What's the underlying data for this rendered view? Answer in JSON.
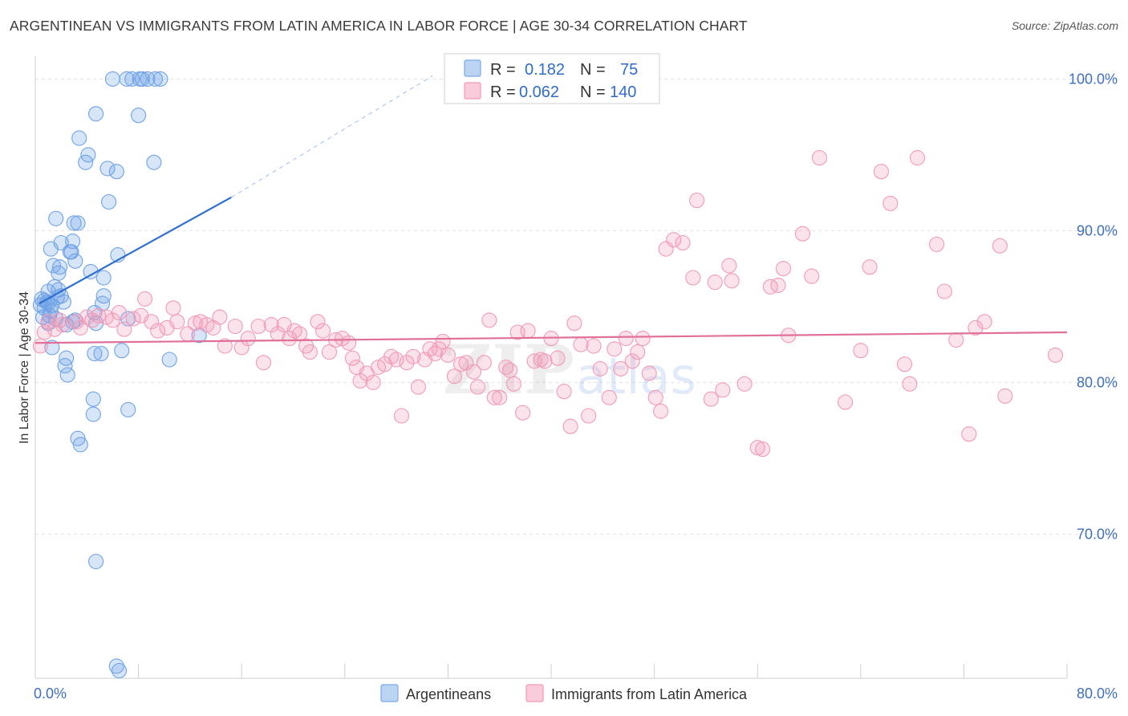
{
  "title": "ARGENTINEAN VS IMMIGRANTS FROM LATIN AMERICA IN LABOR FORCE | AGE 30-34 CORRELATION CHART",
  "source": "Source: ZipAtlas.com",
  "watermark": {
    "zip": "ZIP",
    "atlas": "atlas"
  },
  "chart_data": {
    "type": "scatter",
    "ylabel": "In Labor Force | Age 30-34",
    "xlim": [
      0,
      80
    ],
    "ylim": [
      60.5,
      101.5
    ],
    "x_tick_labels": [
      "0.0%",
      "80.0%"
    ],
    "y_ticks": [
      {
        "value": 100,
        "label": "100.0%"
      },
      {
        "value": 90,
        "label": "90.0%"
      },
      {
        "value": 80,
        "label": "80.0%"
      },
      {
        "value": 70,
        "label": "70.0%"
      }
    ],
    "grid": true,
    "legend_position": "top-center",
    "stats_legend": [
      {
        "r_label": "R =",
        "r": "0.182",
        "n_label": "N =",
        "n": "75",
        "color": "#7aaae8"
      },
      {
        "r_label": "R =",
        "r": "0.062",
        "n_label": "N =",
        "n": "140",
        "color": "#f29ab8"
      }
    ],
    "series": [
      {
        "name": "Argentineans",
        "color": "#6fa3e6",
        "line_color": "#2e6fd0",
        "trend": {
          "x0": 0.3,
          "y0": 85.2,
          "x1": 15.2,
          "y1": 92.2,
          "dash_x1": 30.8,
          "dash_y1": 100.2
        },
        "points": [
          [
            6.0,
            100.0
          ],
          [
            7.1,
            100.0
          ],
          [
            7.5,
            100.0
          ],
          [
            8.1,
            100.0
          ],
          [
            8.3,
            100.0
          ],
          [
            8.7,
            100.0
          ],
          [
            9.3,
            100.0
          ],
          [
            9.7,
            100.0
          ],
          [
            4.7,
            97.7
          ],
          [
            8.0,
            97.6
          ],
          [
            3.4,
            96.1
          ],
          [
            4.1,
            95.0
          ],
          [
            3.9,
            94.5
          ],
          [
            9.2,
            94.5
          ],
          [
            5.6,
            94.1
          ],
          [
            6.3,
            93.9
          ],
          [
            5.7,
            91.9
          ],
          [
            1.6,
            90.8
          ],
          [
            3.0,
            90.5
          ],
          [
            3.3,
            90.5
          ],
          [
            2.0,
            89.2
          ],
          [
            1.2,
            88.8
          ],
          [
            2.9,
            89.3
          ],
          [
            2.7,
            88.6
          ],
          [
            2.8,
            88.6
          ],
          [
            6.4,
            88.4
          ],
          [
            3.1,
            88.0
          ],
          [
            1.4,
            87.7
          ],
          [
            1.9,
            87.6
          ],
          [
            1.8,
            87.2
          ],
          [
            4.3,
            87.3
          ],
          [
            5.3,
            86.9
          ],
          [
            1.5,
            86.3
          ],
          [
            1.8,
            86.1
          ],
          [
            1.0,
            86.0
          ],
          [
            0.5,
            85.5
          ],
          [
            0.7,
            85.4
          ],
          [
            1.0,
            85.2
          ],
          [
            1.3,
            85.1
          ],
          [
            0.4,
            85.1
          ],
          [
            0.7,
            84.9
          ],
          [
            1.2,
            84.7
          ],
          [
            2.2,
            85.3
          ],
          [
            2.0,
            85.7
          ],
          [
            1.7,
            85.6
          ],
          [
            5.3,
            85.7
          ],
          [
            5.2,
            85.2
          ],
          [
            4.6,
            84.6
          ],
          [
            0.6,
            84.3
          ],
          [
            1.0,
            83.9
          ],
          [
            1.6,
            84.2
          ],
          [
            2.4,
            83.8
          ],
          [
            2.9,
            84.0
          ],
          [
            4.7,
            83.9
          ],
          [
            7.2,
            84.2
          ],
          [
            12.7,
            83.1
          ],
          [
            1.3,
            82.3
          ],
          [
            6.7,
            82.1
          ],
          [
            2.4,
            81.6
          ],
          [
            4.6,
            81.9
          ],
          [
            5.1,
            81.9
          ],
          [
            2.3,
            81.1
          ],
          [
            10.4,
            81.5
          ],
          [
            2.5,
            80.5
          ],
          [
            4.5,
            78.9
          ],
          [
            4.5,
            77.9
          ],
          [
            7.2,
            78.2
          ],
          [
            3.3,
            76.3
          ],
          [
            3.5,
            75.9
          ],
          [
            4.7,
            68.2
          ],
          [
            6.3,
            61.3
          ],
          [
            6.5,
            61.0
          ],
          [
            3.1,
            84.1
          ],
          [
            0.9,
            85.3
          ],
          [
            1.1,
            84.4
          ]
        ]
      },
      {
        "name": "Immigrants from Latin America",
        "color": "#f29ab8",
        "line_color": "#e0709a",
        "trend": {
          "x0": 0.0,
          "y0": 82.6,
          "x1": 80.0,
          "y1": 83.3
        },
        "points": [
          [
            0.4,
            82.4
          ],
          [
            0.7,
            83.3
          ],
          [
            1.0,
            84.0
          ],
          [
            1.5,
            83.5
          ],
          [
            1.9,
            84.1
          ],
          [
            2.1,
            83.8
          ],
          [
            3.2,
            84.0
          ],
          [
            3.5,
            83.6
          ],
          [
            4.0,
            84.3
          ],
          [
            4.4,
            84.1
          ],
          [
            4.9,
            84.4
          ],
          [
            5.5,
            84.3
          ],
          [
            6.0,
            84.1
          ],
          [
            6.5,
            84.6
          ],
          [
            6.9,
            83.5
          ],
          [
            7.6,
            84.2
          ],
          [
            8.2,
            84.4
          ],
          [
            8.5,
            85.5
          ],
          [
            9.0,
            84.0
          ],
          [
            9.5,
            83.4
          ],
          [
            10.2,
            83.6
          ],
          [
            10.7,
            84.9
          ],
          [
            11.0,
            84.0
          ],
          [
            11.8,
            83.2
          ],
          [
            12.4,
            83.9
          ],
          [
            12.8,
            84.0
          ],
          [
            13.3,
            83.8
          ],
          [
            13.8,
            83.6
          ],
          [
            14.3,
            84.3
          ],
          [
            14.7,
            82.4
          ],
          [
            15.5,
            83.7
          ],
          [
            16.0,
            82.3
          ],
          [
            16.5,
            82.9
          ],
          [
            17.3,
            83.7
          ],
          [
            17.7,
            81.3
          ],
          [
            18.3,
            83.8
          ],
          [
            18.8,
            83.2
          ],
          [
            19.3,
            83.8
          ],
          [
            19.7,
            82.9
          ],
          [
            20.1,
            83.4
          ],
          [
            20.5,
            83.2
          ],
          [
            21.0,
            82.4
          ],
          [
            21.3,
            82.0
          ],
          [
            21.9,
            84.0
          ],
          [
            22.3,
            83.4
          ],
          [
            22.8,
            82.0
          ],
          [
            23.3,
            82.8
          ],
          [
            23.8,
            82.9
          ],
          [
            24.3,
            82.6
          ],
          [
            24.6,
            81.6
          ],
          [
            24.9,
            81.0
          ],
          [
            25.2,
            80.1
          ],
          [
            25.7,
            80.6
          ],
          [
            26.2,
            80.0
          ],
          [
            26.6,
            81.0
          ],
          [
            27.1,
            81.2
          ],
          [
            27.6,
            81.7
          ],
          [
            28.0,
            81.5
          ],
          [
            28.4,
            77.8
          ],
          [
            28.8,
            81.3
          ],
          [
            29.3,
            81.7
          ],
          [
            29.7,
            79.7
          ],
          [
            30.2,
            81.5
          ],
          [
            30.6,
            82.2
          ],
          [
            31.0,
            81.9
          ],
          [
            31.3,
            82.2
          ],
          [
            31.6,
            82.7
          ],
          [
            32.0,
            81.8
          ],
          [
            32.5,
            80.4
          ],
          [
            33.0,
            81.2
          ],
          [
            33.4,
            81.3
          ],
          [
            34.0,
            80.7
          ],
          [
            34.3,
            79.7
          ],
          [
            34.8,
            81.3
          ],
          [
            35.2,
            84.1
          ],
          [
            35.6,
            79.0
          ],
          [
            36.0,
            79.0
          ],
          [
            36.5,
            81.0
          ],
          [
            36.8,
            80.8
          ],
          [
            37.1,
            79.9
          ],
          [
            37.4,
            83.3
          ],
          [
            37.8,
            78.0
          ],
          [
            38.2,
            83.4
          ],
          [
            38.7,
            81.4
          ],
          [
            39.2,
            81.5
          ],
          [
            39.5,
            81.4
          ],
          [
            40.0,
            82.9
          ],
          [
            40.5,
            81.6
          ],
          [
            41.0,
            79.4
          ],
          [
            41.5,
            77.1
          ],
          [
            41.8,
            83.9
          ],
          [
            42.3,
            82.5
          ],
          [
            42.9,
            77.8
          ],
          [
            43.3,
            82.4
          ],
          [
            43.8,
            80.9
          ],
          [
            44.5,
            79.0
          ],
          [
            44.9,
            82.2
          ],
          [
            45.4,
            80.9
          ],
          [
            45.8,
            82.9
          ],
          [
            46.3,
            81.4
          ],
          [
            46.7,
            82.0
          ],
          [
            47.1,
            82.9
          ],
          [
            47.6,
            80.6
          ],
          [
            48.1,
            79.0
          ],
          [
            48.5,
            78.1
          ],
          [
            48.9,
            88.8
          ],
          [
            49.5,
            89.4
          ],
          [
            50.2,
            89.2
          ],
          [
            51.0,
            86.9
          ],
          [
            51.3,
            92.0
          ],
          [
            52.4,
            78.9
          ],
          [
            52.7,
            86.6
          ],
          [
            53.3,
            79.5
          ],
          [
            53.8,
            87.7
          ],
          [
            54.0,
            86.7
          ],
          [
            55.0,
            79.9
          ],
          [
            56.0,
            75.7
          ],
          [
            56.4,
            75.6
          ],
          [
            57.0,
            86.3
          ],
          [
            57.6,
            86.4
          ],
          [
            58.0,
            87.5
          ],
          [
            58.4,
            83.1
          ],
          [
            59.5,
            89.8
          ],
          [
            60.2,
            87.0
          ],
          [
            60.8,
            94.8
          ],
          [
            62.8,
            78.7
          ],
          [
            64.0,
            82.1
          ],
          [
            64.7,
            87.6
          ],
          [
            65.6,
            93.9
          ],
          [
            66.3,
            91.8
          ],
          [
            67.4,
            81.2
          ],
          [
            67.8,
            79.9
          ],
          [
            68.4,
            94.8
          ],
          [
            69.9,
            89.1
          ],
          [
            70.5,
            86.0
          ],
          [
            71.4,
            82.8
          ],
          [
            72.4,
            76.6
          ],
          [
            72.9,
            83.6
          ],
          [
            73.6,
            84.0
          ],
          [
            74.8,
            89.0
          ],
          [
            75.2,
            79.1
          ],
          [
            79.1,
            81.8
          ]
        ]
      }
    ]
  },
  "bottom_legend": [
    "Argentineans",
    "Immigrants from Latin America"
  ]
}
